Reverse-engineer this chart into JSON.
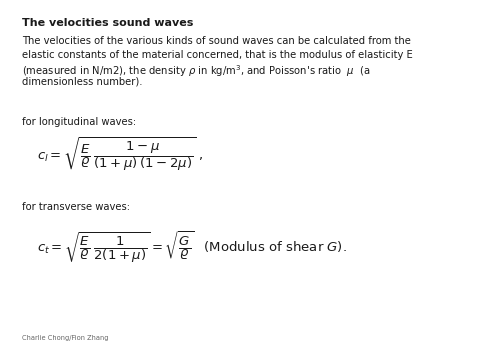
{
  "bg_color": "#ffffff",
  "title": "The velocities sound waves",
  "label_longitudinal": "for longitudinal waves:",
  "label_transverse": "for transverse waves:",
  "footer": "Charlie Chong/Fion Zhang",
  "body_lines": [
    "The velocities of the various kinds of sound waves can be calculated from the",
    "elastic constants of the material concerned, that is the modulus of elasticity E",
    "(measured in N/m2), the density $\\rho$ in kg/m$^3$, and Poisson's ratio  $\\mu$  (a",
    "dimensionless number)."
  ],
  "title_fontsize": 8.0,
  "body_fontsize": 7.2,
  "formula_fontsize": 9.5,
  "footer_fontsize": 4.8,
  "text_color": "#1a1a1a",
  "footer_color": "#666666"
}
